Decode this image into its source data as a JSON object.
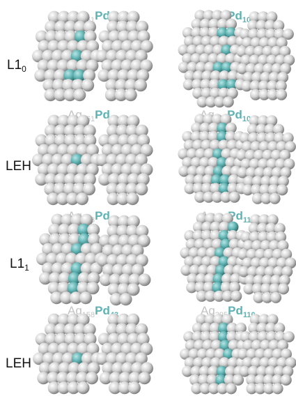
{
  "rows": [
    {
      "label": "L1",
      "label_sub": "0",
      "left": {
        "ag": "Ag",
        "ag_n": "161",
        "pd": "Pd",
        "pd_n": "40"
      },
      "right": {
        "ag": "Ag",
        "ag_n": "300",
        "pd": "Pd",
        "pd_n": "105"
      }
    },
    {
      "label": "LEH",
      "label_sub": "",
      "left": {
        "ag": "Ag",
        "ag_n": "161",
        "pd": "Pd",
        "pd_n": "40"
      },
      "right": {
        "ag": "Ag",
        "ag_n": "300",
        "pd": "Pd",
        "pd_n": "105"
      }
    },
    {
      "label": "L1",
      "label_sub": "1",
      "left": {
        "ag": "Ag",
        "ag_n": "158",
        "pd": "Pd",
        "pd_n": "43"
      },
      "right": {
        "ag": "Ag",
        "ag_n": "295",
        "pd": "Pd",
        "pd_n": "110"
      }
    },
    {
      "label": "LEH",
      "label_sub": "",
      "left": {
        "ag": "Ag",
        "ag_n": "158",
        "pd": "Pd",
        "pd_n": "43"
      },
      "right": {
        "ag": "Ag",
        "ag_n": "295",
        "pd": "Pd",
        "pd_n": "110"
      }
    }
  ],
  "colors": {
    "silver": "#d2d2d2",
    "teal": "#5fb2b2",
    "ag_text": "#c4c4c4",
    "pd_text": "#5fb2b2"
  }
}
